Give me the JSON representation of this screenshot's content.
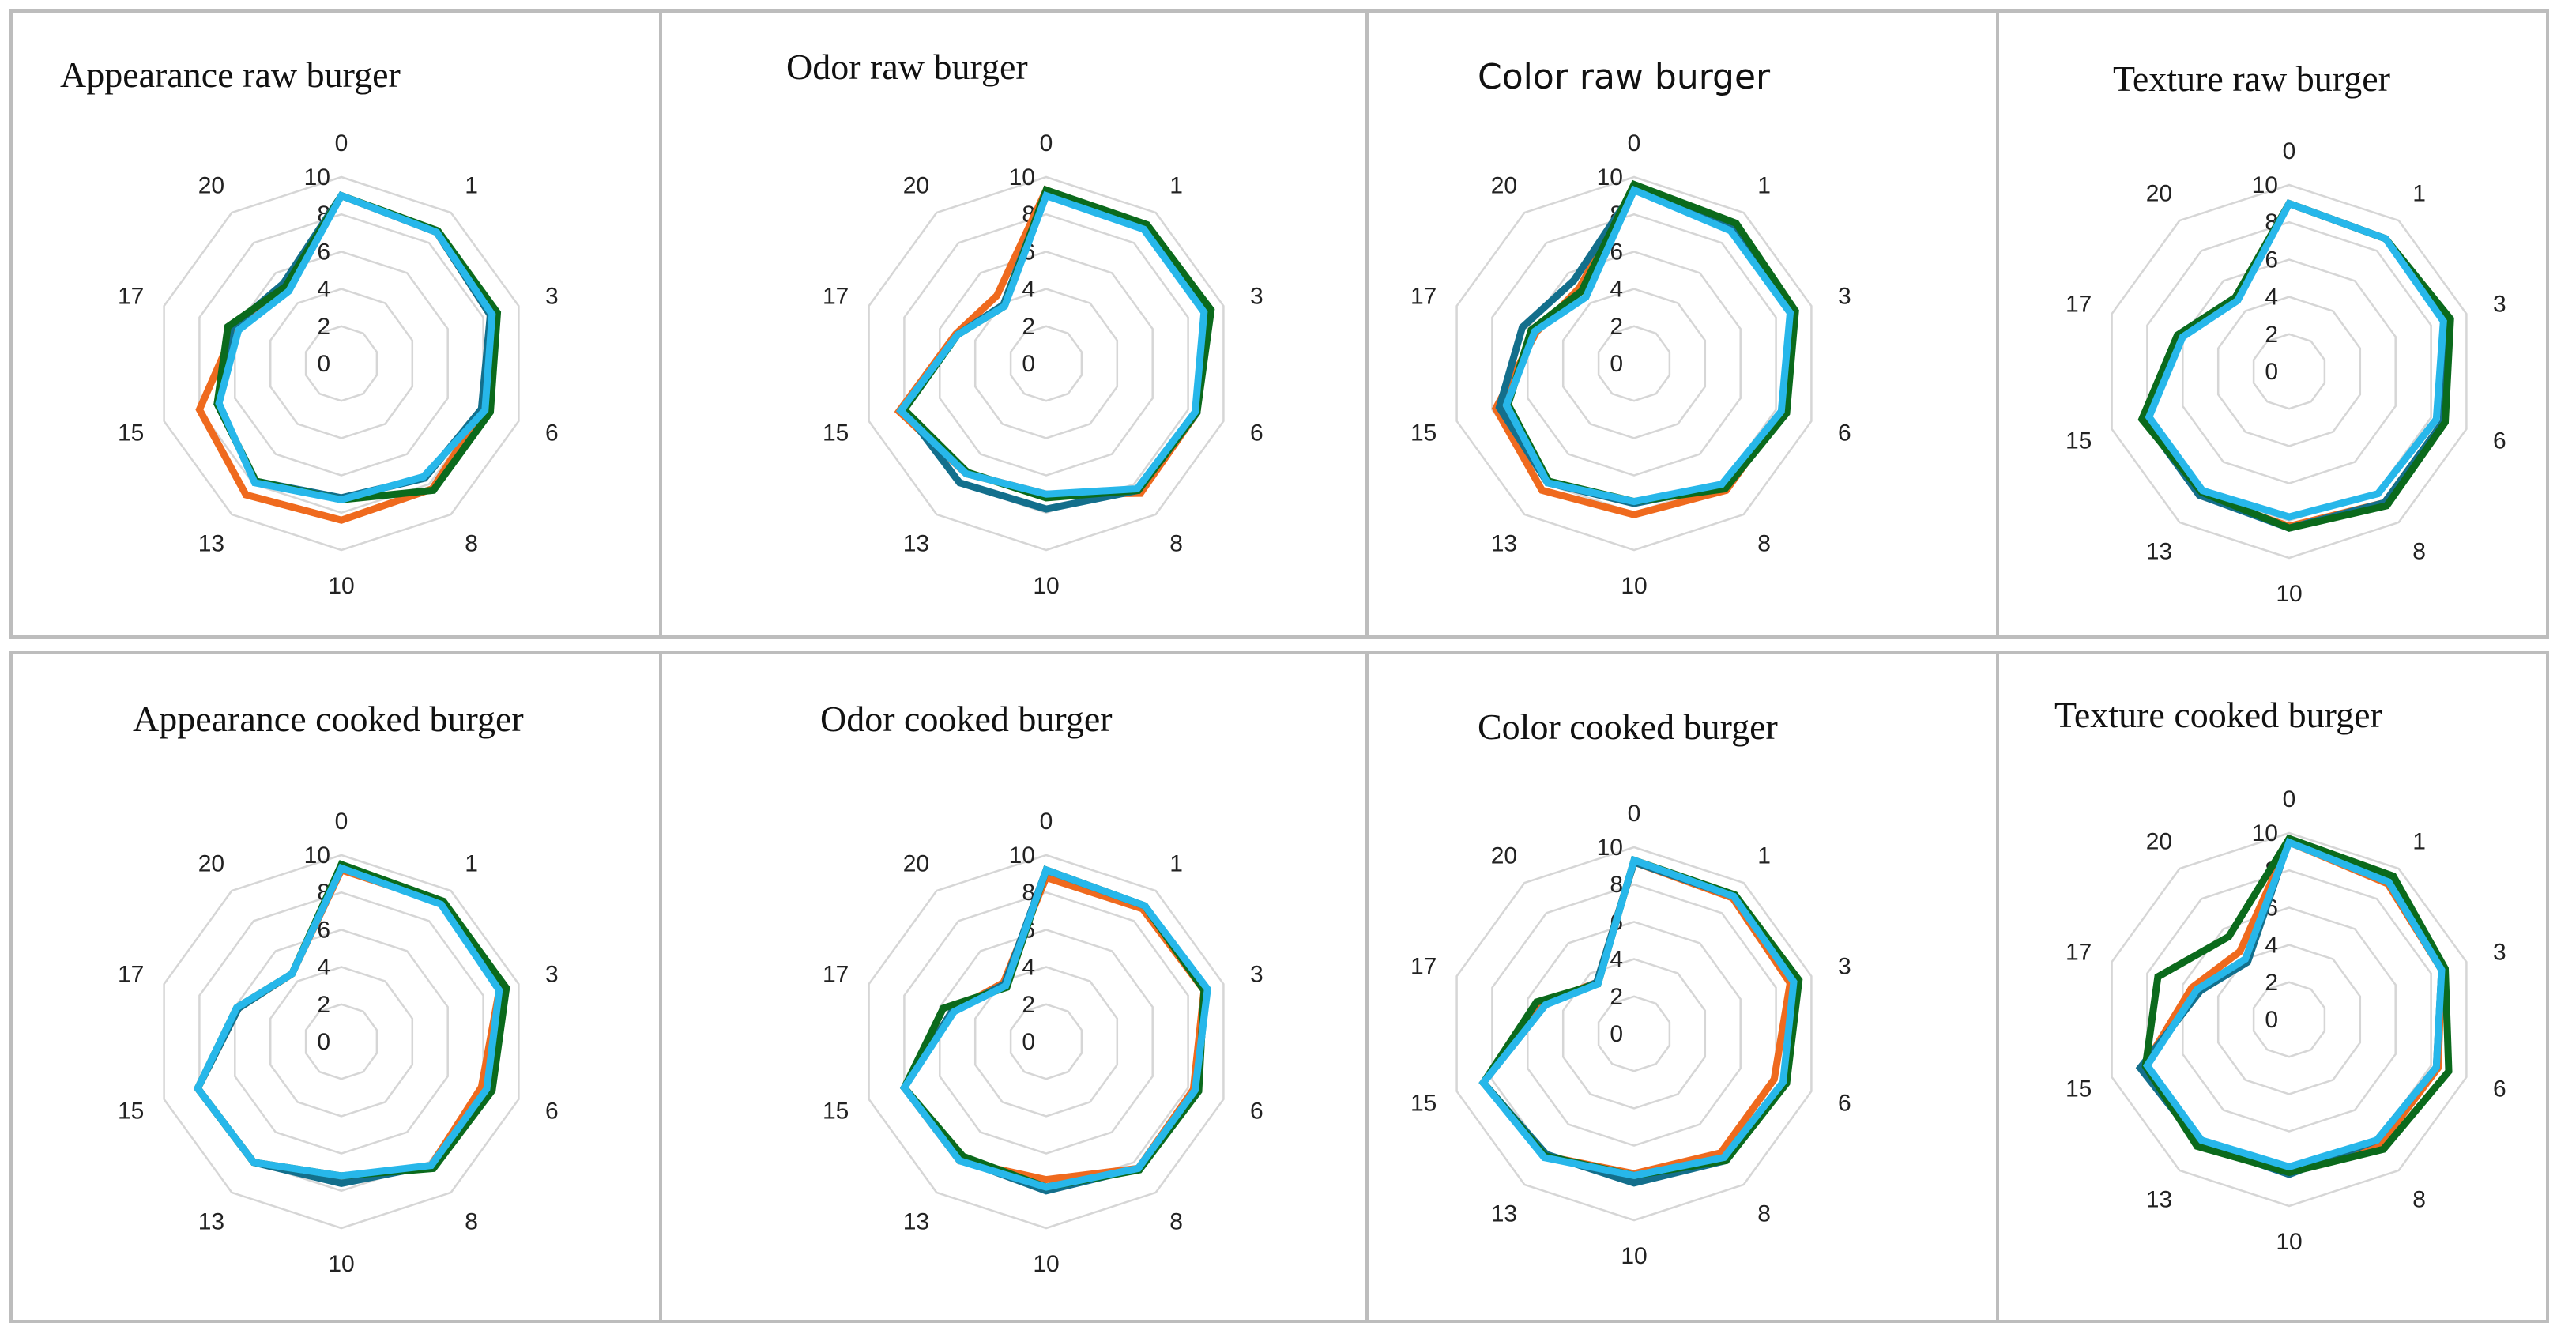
{
  "colors": {
    "series": [
      "#ef6a1e",
      "#136f8c",
      "#0b6a1c",
      "#27b7ea"
    ],
    "grid": "#d6d6d6",
    "border": "#bdbdbd"
  },
  "chart_data": [
    {
      "type": "radar",
      "title": "Appearance raw burger",
      "categories": [
        "0",
        "1",
        "3",
        "6",
        "8",
        "10",
        "13",
        "15",
        "17",
        "20"
      ],
      "ticks": [
        "0",
        "2",
        "4",
        "6",
        "8",
        "10"
      ],
      "rlim": [
        0,
        10
      ],
      "series": [
        {
          "name": "orange",
          "values": [
            9.0,
            8.7,
            8.4,
            8.0,
            8.3,
            8.4,
            8.7,
            8.0,
            6.0,
            5.0
          ]
        },
        {
          "name": "navy",
          "values": [
            9.0,
            8.7,
            8.4,
            7.9,
            7.6,
            7.2,
            7.8,
            7.0,
            6.2,
            5.3
          ]
        },
        {
          "name": "green",
          "values": [
            9.0,
            8.8,
            8.8,
            8.4,
            8.4,
            7.3,
            7.8,
            7.0,
            6.4,
            5.1
          ]
        },
        {
          "name": "cyan",
          "values": [
            9.0,
            8.7,
            8.5,
            8.1,
            7.5,
            7.3,
            7.9,
            6.9,
            5.8,
            4.8
          ]
        }
      ]
    },
    {
      "type": "radar",
      "title": "Odor raw burger",
      "categories": [
        "0",
        "1",
        "3",
        "6",
        "8",
        "10",
        "13",
        "15",
        "17",
        "20"
      ],
      "ticks": [
        "0",
        "2",
        "4",
        "6",
        "8",
        "10"
      ],
      "rlim": [
        0,
        10
      ],
      "series": [
        {
          "name": "orange",
          "values": [
            9.3,
            9.0,
            9.1,
            8.5,
            8.6,
            7.0,
            7.3,
            8.3,
            5.1,
            4.5
          ]
        },
        {
          "name": "navy",
          "values": [
            9.2,
            9.0,
            9.1,
            8.5,
            8.4,
            7.8,
            7.9,
            8.0,
            5.0,
            3.9
          ]
        },
        {
          "name": "green",
          "values": [
            9.3,
            9.2,
            9.3,
            8.5,
            8.4,
            7.2,
            7.2,
            8.0,
            5.0,
            3.8
          ]
        },
        {
          "name": "cyan",
          "values": [
            9.0,
            8.9,
            8.9,
            8.4,
            8.3,
            7.0,
            7.3,
            8.2,
            5.0,
            3.8
          ]
        }
      ]
    },
    {
      "type": "radar",
      "title": "Color raw burger",
      "categories": [
        "0",
        "1",
        "3",
        "6",
        "8",
        "10",
        "13",
        "15",
        "17",
        "20"
      ],
      "ticks": [
        "0",
        "2",
        "4",
        "6",
        "8",
        "10"
      ],
      "rlim": [
        0,
        10
      ],
      "series": [
        {
          "name": "orange",
          "values": [
            9.4,
            9.0,
            8.9,
            8.4,
            8.4,
            8.1,
            8.4,
            7.8,
            5.5,
            5.0
          ]
        },
        {
          "name": "navy",
          "values": [
            9.3,
            9.0,
            8.9,
            8.4,
            8.1,
            7.5,
            7.9,
            7.6,
            6.3,
            5.5
          ]
        },
        {
          "name": "green",
          "values": [
            9.6,
            9.3,
            9.1,
            8.6,
            8.3,
            7.4,
            7.8,
            7.1,
            5.8,
            4.8
          ]
        },
        {
          "name": "cyan",
          "values": [
            9.3,
            8.8,
            8.8,
            8.3,
            8.0,
            7.4,
            7.9,
            7.2,
            5.6,
            4.4
          ]
        }
      ]
    },
    {
      "type": "radar",
      "title": "Texture raw burger",
      "categories": [
        "0",
        "1",
        "3",
        "6",
        "8",
        "10",
        "13",
        "15",
        "17",
        "20"
      ],
      "ticks": [
        "0",
        "2",
        "4",
        "6",
        "8",
        "10"
      ],
      "rlim": [
        0,
        10
      ],
      "series": [
        {
          "name": "orange",
          "values": [
            9.0,
            8.8,
            8.9,
            8.7,
            8.7,
            8.3,
            8.2,
            8.1,
            6.1,
            4.9
          ]
        },
        {
          "name": "navy",
          "values": [
            9.0,
            8.8,
            8.9,
            8.7,
            8.7,
            8.4,
            8.2,
            8.2,
            6.3,
            4.9
          ]
        },
        {
          "name": "green",
          "values": [
            9.0,
            8.8,
            9.1,
            8.8,
            8.9,
            8.4,
            8.0,
            8.3,
            6.3,
            4.9
          ]
        },
        {
          "name": "cyan",
          "values": [
            9.0,
            8.8,
            8.7,
            8.3,
            8.1,
            7.8,
            7.9,
            7.9,
            6.0,
            4.7
          ]
        }
      ]
    },
    {
      "type": "radar",
      "title": "Appearance cooked burger",
      "categories": [
        "0",
        "1",
        "3",
        "6",
        "8",
        "10",
        "13",
        "15",
        "17",
        "20"
      ],
      "ticks": [
        "0",
        "2",
        "4",
        "6",
        "8",
        "10"
      ],
      "rlim": [
        0,
        10
      ],
      "series": [
        {
          "name": "orange",
          "values": [
            9.2,
            9.2,
            8.9,
            7.9,
            8.2,
            7.3,
            8.0,
            8.1,
            5.8,
            4.5
          ]
        },
        {
          "name": "navy",
          "values": [
            9.3,
            9.2,
            9.3,
            8.4,
            8.2,
            7.6,
            8.0,
            8.1,
            5.8,
            4.5
          ]
        },
        {
          "name": "green",
          "values": [
            9.5,
            9.3,
            9.3,
            8.5,
            8.4,
            7.2,
            8.0,
            8.1,
            5.9,
            4.5
          ]
        },
        {
          "name": "cyan",
          "values": [
            9.3,
            9.1,
            8.9,
            8.2,
            8.2,
            7.2,
            8.0,
            8.1,
            5.9,
            4.5
          ]
        }
      ]
    },
    {
      "type": "radar",
      "title": "Odor cooked burger",
      "categories": [
        "0",
        "1",
        "3",
        "6",
        "8",
        "10",
        "13",
        "15",
        "17",
        "20"
      ],
      "ticks": [
        "0",
        "2",
        "4",
        "6",
        "8",
        "10"
      ],
      "rlim": [
        0,
        10
      ],
      "series": [
        {
          "name": "orange",
          "values": [
            8.8,
            8.8,
            8.9,
            8.3,
            8.4,
            7.4,
            7.9,
            8.0,
            5.3,
            3.9
          ]
        },
        {
          "name": "navy",
          "values": [
            9.2,
            9.0,
            9.0,
            8.5,
            8.4,
            8.0,
            7.8,
            8.0,
            5.3,
            3.8
          ]
        },
        {
          "name": "green",
          "values": [
            9.2,
            9.0,
            8.9,
            8.6,
            8.5,
            7.8,
            7.6,
            8.0,
            5.8,
            3.6
          ]
        },
        {
          "name": "cyan",
          "values": [
            9.2,
            9.0,
            9.1,
            8.4,
            8.4,
            7.8,
            7.9,
            8.0,
            5.2,
            3.7
          ]
        }
      ]
    },
    {
      "type": "radar",
      "title": "Color cooked burger",
      "categories": [
        "0",
        "1",
        "3",
        "6",
        "8",
        "10",
        "13",
        "15",
        "17",
        "20"
      ],
      "ticks": [
        "0",
        "2",
        "4",
        "6",
        "8",
        "10"
      ],
      "rlim": [
        0,
        10
      ],
      "series": [
        {
          "name": "orange",
          "values": [
            9.2,
            9.0,
            8.8,
            7.9,
            7.9,
            7.5,
            8.1,
            8.5,
            5.2,
            3.4
          ]
        },
        {
          "name": "navy",
          "values": [
            9.2,
            9.1,
            9.1,
            8.5,
            8.4,
            8.0,
            8.0,
            8.5,
            5.0,
            3.4
          ]
        },
        {
          "name": "green",
          "values": [
            9.3,
            9.2,
            9.3,
            8.6,
            8.4,
            7.6,
            8.1,
            8.5,
            5.5,
            3.3
          ]
        },
        {
          "name": "cyan",
          "values": [
            9.3,
            9.1,
            9.0,
            8.4,
            8.2,
            7.6,
            8.2,
            8.5,
            5.0,
            3.3
          ]
        }
      ]
    },
    {
      "type": "radar",
      "title": "Texture cooked burger",
      "categories": [
        "0",
        "1",
        "3",
        "6",
        "8",
        "10",
        "13",
        "15",
        "17",
        "20"
      ],
      "ticks": [
        "0",
        "2",
        "4",
        "6",
        "8",
        "10"
      ],
      "rlim": [
        0,
        10
      ],
      "series": [
        {
          "name": "orange",
          "values": [
            9.5,
            9.0,
            8.6,
            8.4,
            8.3,
            8.0,
            8.2,
            8.2,
            5.5,
            4.5
          ]
        },
        {
          "name": "navy",
          "values": [
            9.6,
            9.1,
            8.6,
            8.3,
            8.0,
            8.3,
            8.2,
            8.4,
            5.0,
            3.8
          ]
        },
        {
          "name": "green",
          "values": [
            9.7,
            9.5,
            8.8,
            9.0,
            8.6,
            8.2,
            8.4,
            8.1,
            7.4,
            5.5
          ]
        },
        {
          "name": "cyan",
          "values": [
            9.5,
            9.1,
            8.6,
            8.3,
            8.0,
            7.9,
            8.0,
            8.0,
            5.2,
            4.0
          ]
        }
      ]
    }
  ]
}
